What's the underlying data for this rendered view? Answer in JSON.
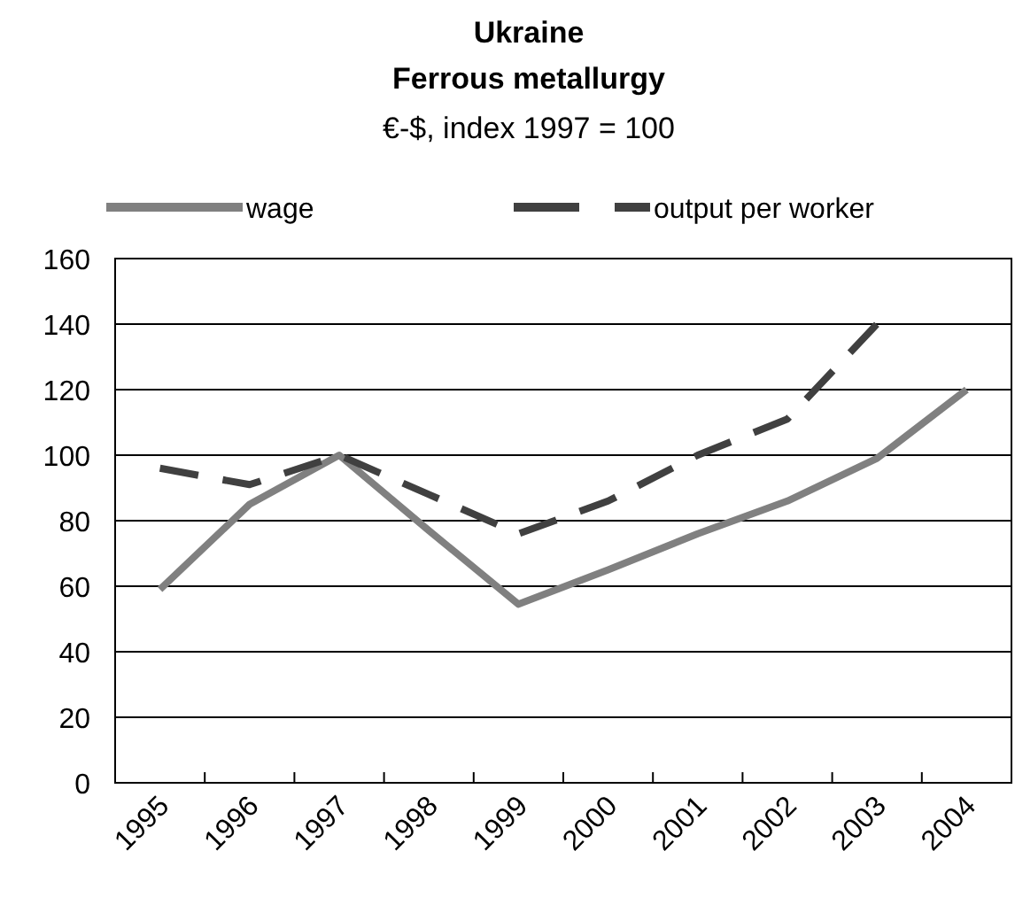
{
  "chart_data": {
    "type": "line",
    "title": "Ukraine\nFerrous metallurgy",
    "subtitle": "€-$, index 1997 = 100",
    "categories": [
      "1995",
      "1996",
      "1997",
      "1998",
      "1999",
      "2000",
      "2001",
      "2002",
      "2003",
      "2004"
    ],
    "series": [
      {
        "name": "wage",
        "color": "#808080",
        "line_style": "solid",
        "values": [
          59,
          85,
          100,
          77,
          54.5,
          65,
          76,
          86,
          99,
          120
        ]
      },
      {
        "name": "output per worker",
        "color": "#404040",
        "line_style": "dashed",
        "values": [
          96,
          91,
          100,
          88,
          76,
          86,
          100,
          111,
          140,
          null
        ]
      }
    ],
    "ylim": [
      0,
      160
    ],
    "yticks": [
      0,
      20,
      40,
      60,
      80,
      100,
      120,
      140,
      160
    ],
    "grid": "y",
    "legend": "top",
    "marker": "none"
  }
}
